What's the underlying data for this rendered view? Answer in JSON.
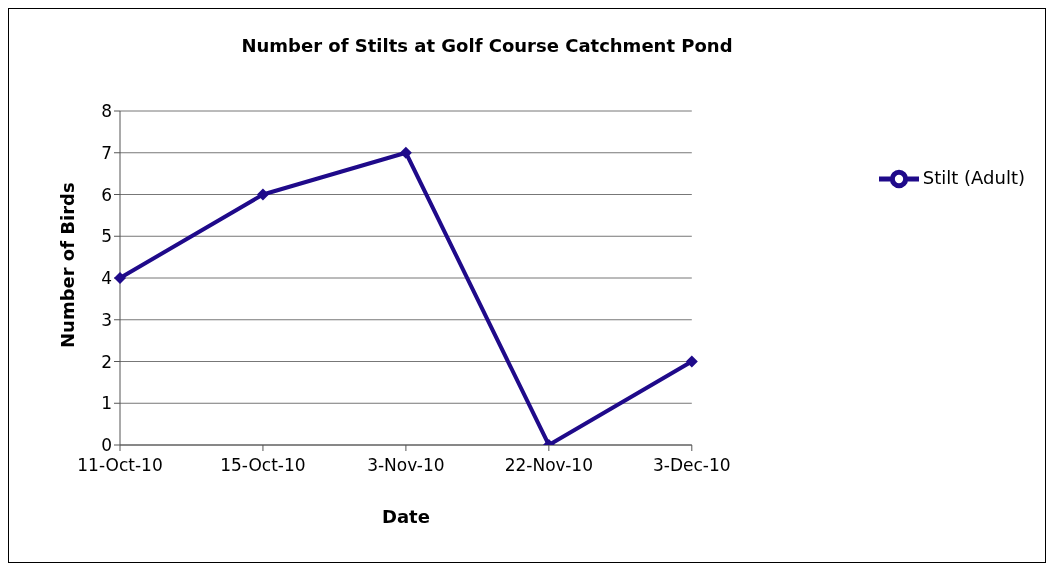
{
  "chart_data": {
    "type": "line",
    "title": "Number of Stilts at Golf Course Catchment Pond",
    "xlabel": "Date",
    "ylabel": "Number of Birds",
    "categories": [
      "11-Oct-10",
      "15-Oct-10",
      "3-Nov-10",
      "22-Nov-10",
      "3-Dec-10"
    ],
    "series": [
      {
        "name": "Stilt (Adult)",
        "color": "#1f0a8a",
        "values": [
          4,
          6,
          7,
          0,
          2
        ]
      }
    ],
    "ylim": [
      0,
      8
    ],
    "yticks": [
      0,
      1,
      2,
      3,
      4,
      5,
      6,
      7,
      8
    ],
    "grid": "y",
    "legend": "right",
    "marker": "diamond",
    "line_style": "solid"
  }
}
